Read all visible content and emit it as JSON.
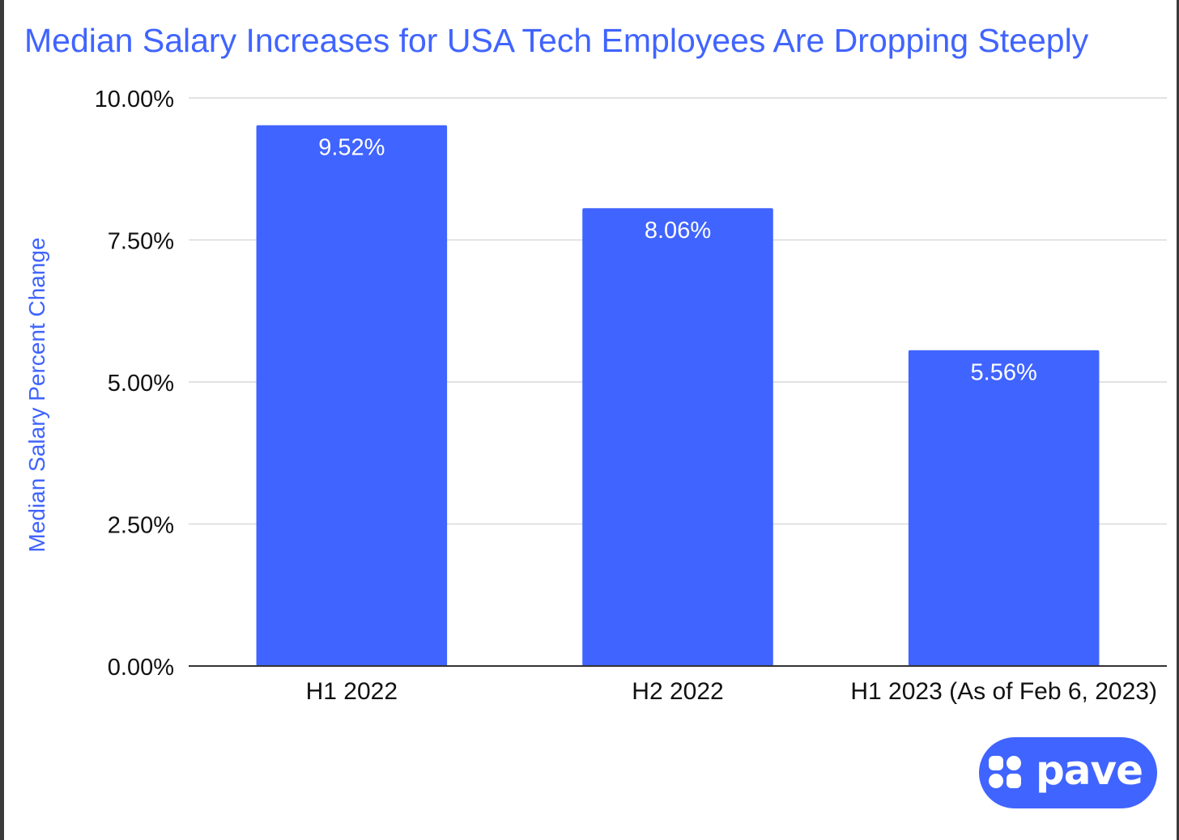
{
  "colors": {
    "accent": "#4064ff",
    "bar": "#4064ff",
    "grid": "#d9d9d9",
    "axis": "#333333",
    "text": "#111111",
    "label_on_bar": "#ffffff"
  },
  "chart_data": {
    "type": "bar",
    "title": "Median Salary Increases for USA Tech Employees Are Dropping Steeply",
    "xlabel": "",
    "ylabel": "Median Salary Percent Change",
    "categories": [
      "H1 2022",
      "H2 2022",
      "H1 2023 (As of Feb 6, 2023)"
    ],
    "values": [
      9.52,
      8.06,
      5.56
    ],
    "data_labels": [
      "9.52%",
      "8.06%",
      "5.56%"
    ],
    "ylim": [
      0,
      10
    ],
    "yticks": [
      0,
      2.5,
      5,
      7.5,
      10
    ],
    "ytick_labels": [
      "0.00%",
      "2.50%",
      "5.00%",
      "7.50%",
      "10.00%"
    ],
    "grid": true,
    "legend": "none"
  },
  "logo": {
    "text": "pave",
    "icon": "pave-logo-icon"
  }
}
